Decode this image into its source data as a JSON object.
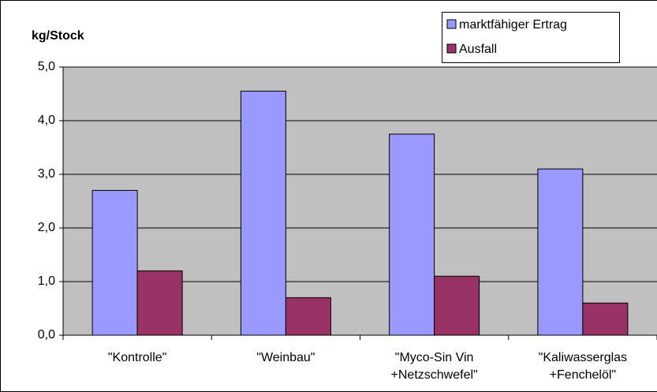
{
  "chart_data": {
    "type": "bar",
    "y_axis_label": "kg/Stock",
    "categories": [
      "\"Kontrolle\"",
      "\"Weinbau\"",
      "\"Myco-Sin Vin +Netzschwefel\"",
      "\"Kaliwasserglas +Fenchelöl\""
    ],
    "series": [
      {
        "name": "marktfähiger Ertrag",
        "color": "#9999ff",
        "values": [
          2.7,
          4.55,
          3.75,
          3.1
        ]
      },
      {
        "name": "Ausfall",
        "color": "#993366",
        "values": [
          1.2,
          0.7,
          1.1,
          0.6
        ]
      }
    ],
    "ylim": [
      0,
      5
    ],
    "yticks": [
      {
        "value": 0,
        "label": "0,0"
      },
      {
        "value": 1,
        "label": "1,0"
      },
      {
        "value": 2,
        "label": "2,0"
      },
      {
        "value": 3,
        "label": "3,0"
      },
      {
        "value": 4,
        "label": "4,0"
      },
      {
        "value": 5,
        "label": "5,0"
      }
    ],
    "grid": true,
    "plot_background": "#c0c0c0",
    "legend": "top-right"
  }
}
